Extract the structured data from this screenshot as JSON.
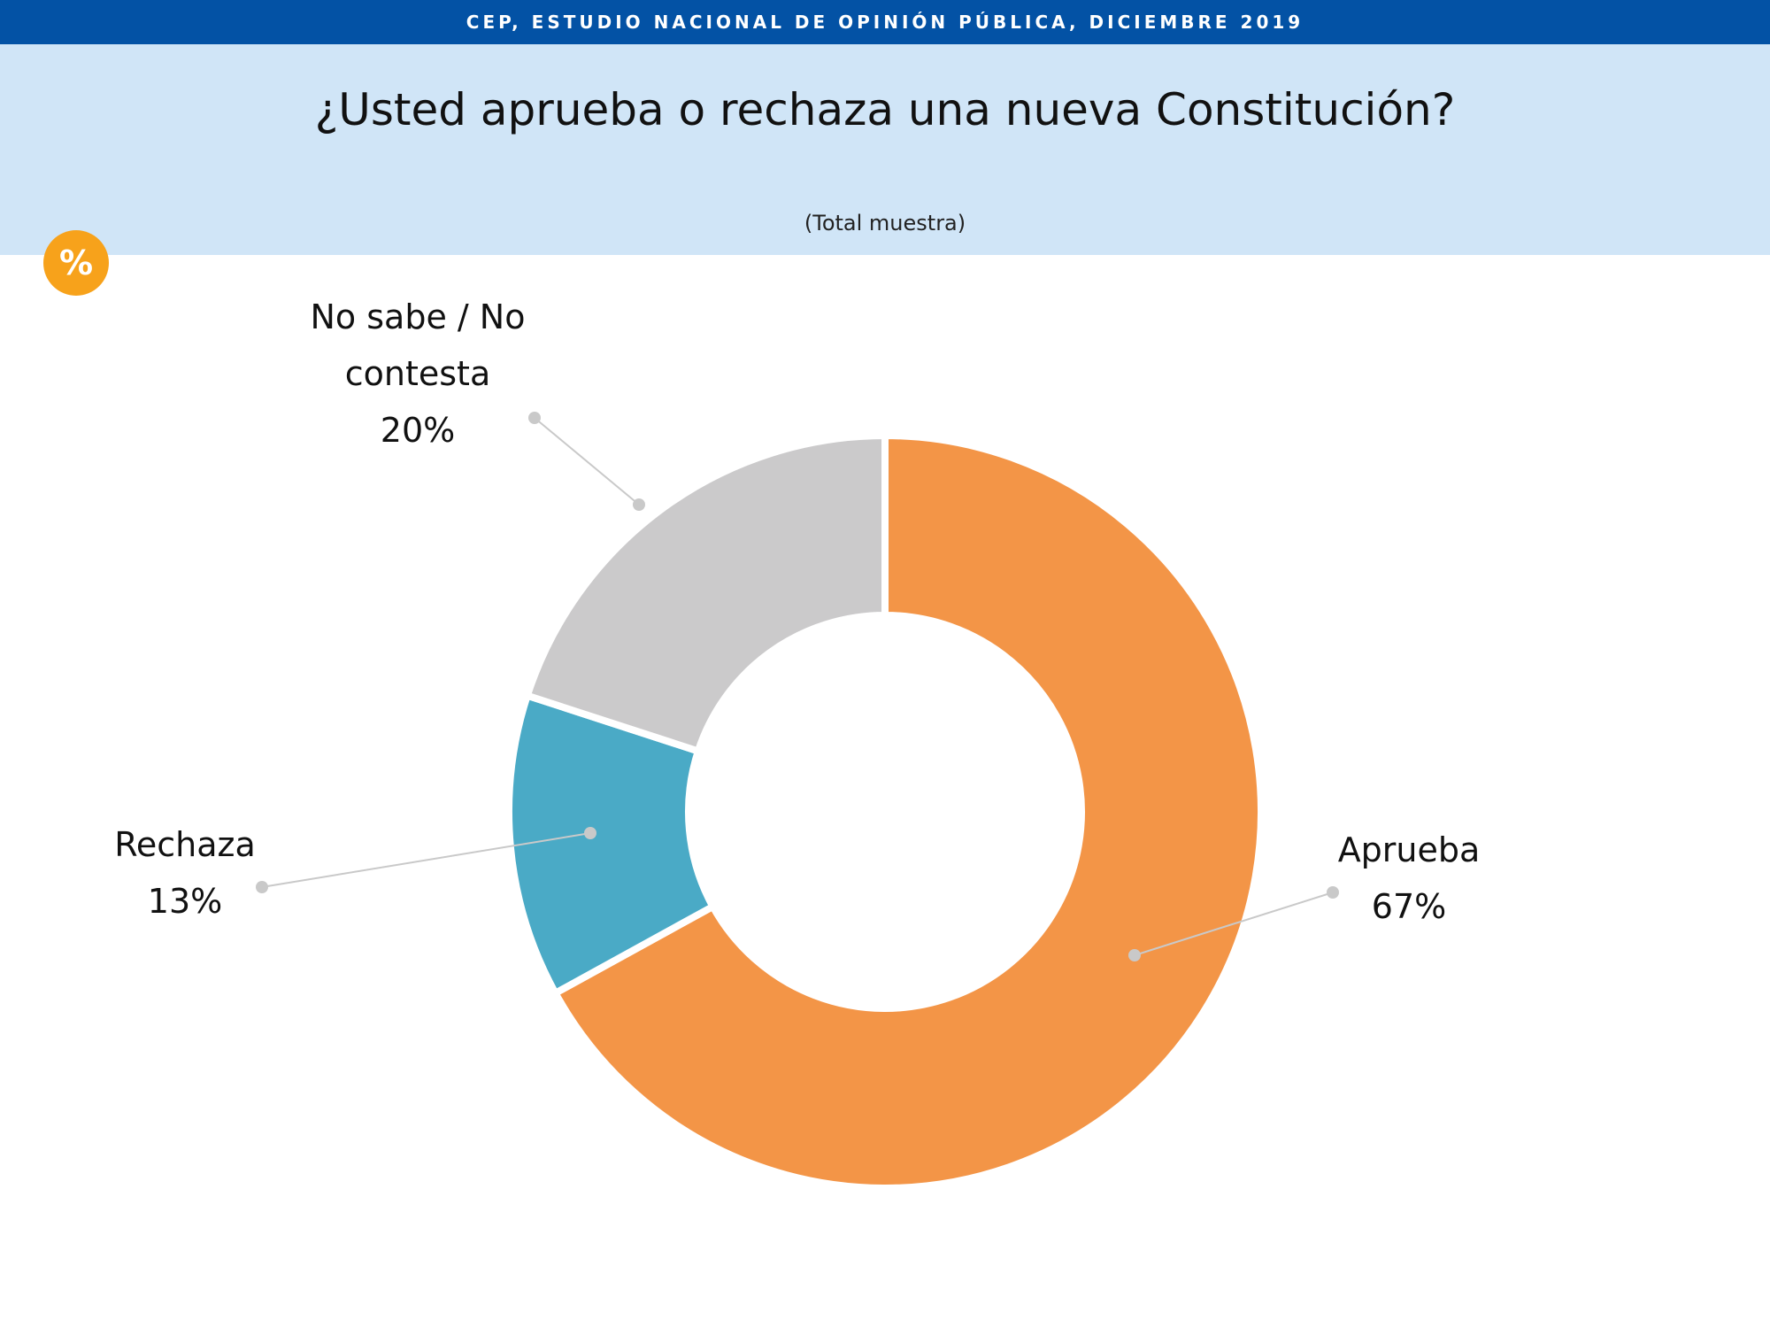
{
  "header": {
    "source": "CEP, ESTUDIO NACIONAL DE OPINIÓN PÚBLICA, DICIEMBRE 2019",
    "title": "¿Usted aprueba o rechaza una nueva Constitución?",
    "subtitle": "(Total muestra)",
    "badge": "%"
  },
  "chart_data": {
    "type": "pie",
    "variant": "donut",
    "title": "¿Usted aprueba o rechaza una nueva Constitución?",
    "subtitle": "(Total muestra)",
    "unit": "%",
    "slices": [
      {
        "label": "Aprueba",
        "value": 67,
        "value_label": "67%",
        "color": "#f39547"
      },
      {
        "label": "Rechaza",
        "value": 13,
        "value_label": "13%",
        "color": "#4aaac6"
      },
      {
        "label": "No sabe / No contesta",
        "value": 20,
        "value_label": "20%",
        "color": "#cbcacb"
      }
    ],
    "label_lines": [
      [
        "Aprueba"
      ],
      [
        "Rechaza"
      ],
      [
        "No sabe / No",
        "contesta"
      ]
    ]
  },
  "colors": {
    "top_bar": "#0352a5",
    "header_band": "#d0e5f7",
    "badge": "#f7a21b",
    "leader_line": "#c9c9c9"
  }
}
